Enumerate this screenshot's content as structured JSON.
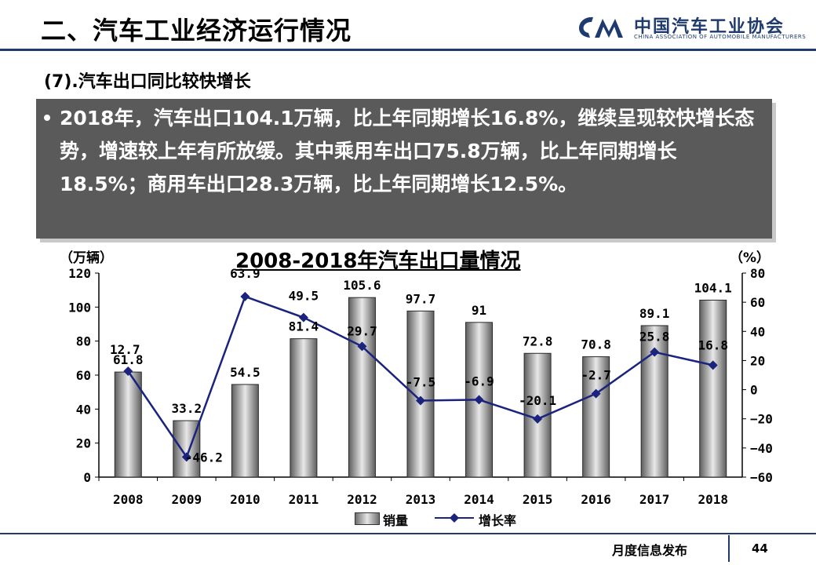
{
  "header": {
    "title": "二、汽车工业经济运行情况",
    "logo_text_cn": "中国汽车工业协会",
    "logo_text_en": "CHINA ASSOCIATION OF AUTOMOBILE MANUFACTURERS"
  },
  "subtitle": "(7).汽车出口同比较快增长",
  "summary": "2018年，汽车出口104.1万辆，比上年同期增长16.8%，继续呈现较快增长态势，增速较上年有所放缓。其中乘用车出口75.8万辆，比上年同期增长18.5%；商用车出口28.3万辆，比上年同期增长12.5%。",
  "chart_data": {
    "type": "bar",
    "title": "2008-2018年汽车出口量情况",
    "y_unit_left": "（万辆）",
    "y_unit_right": "（%）",
    "categories": [
      "2008",
      "2009",
      "2010",
      "2011",
      "2012",
      "2013",
      "2014",
      "2015",
      "2016",
      "2017",
      "2018"
    ],
    "series": [
      {
        "name": "销量",
        "type": "bar",
        "axis": "left",
        "values": [
          61.8,
          33.2,
          54.5,
          81.4,
          105.6,
          97.7,
          91,
          72.8,
          70.8,
          89.1,
          104.1
        ],
        "labels": [
          "61.8",
          "33.2",
          "54.5",
          "81.4",
          "105.6",
          "97.7",
          "91",
          "72.8",
          "70.8",
          "89.1",
          "104.1"
        ]
      },
      {
        "name": "增长率",
        "type": "line",
        "axis": "right",
        "color": "#1a237e",
        "values": [
          12.7,
          -46.2,
          63.9,
          49.5,
          29.7,
          -7.5,
          -6.9,
          -20.1,
          -2.7,
          25.8,
          16.8
        ],
        "labels": [
          "12.7",
          "-46.2",
          "63.9",
          "49.5",
          "29.7",
          "-7.5",
          "-6.9",
          "-20.1",
          "-2.7",
          "25.8",
          "16.8"
        ]
      }
    ],
    "y_left": {
      "min": 0,
      "max": 120,
      "ticks": [
        0,
        20,
        40,
        60,
        80,
        100,
        120
      ]
    },
    "y_right": {
      "min": -60,
      "max": 80,
      "ticks": [
        -60,
        -40,
        -20,
        0,
        20,
        40,
        60,
        80
      ],
      "tick_labels": [
        "−60",
        "−40",
        "−20",
        "0",
        "20",
        "40",
        "60",
        "80"
      ]
    },
    "legend": {
      "position": "bottom"
    }
  },
  "footer": {
    "text": "月度信息发布",
    "page": "44"
  }
}
